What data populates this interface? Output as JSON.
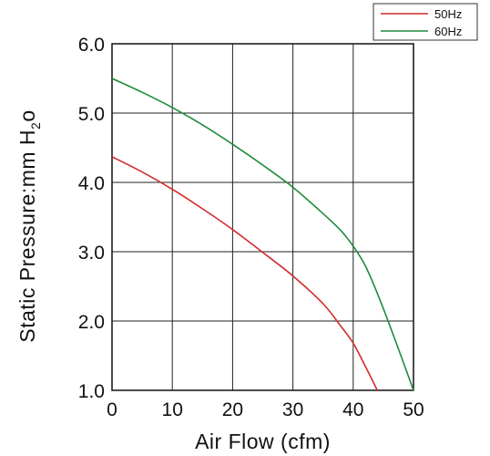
{
  "chart_data": {
    "type": "line",
    "title": "",
    "xlabel": "Air Flow (cfm)",
    "ylabel": "Static Pressure:mm H",
    "ylabel_sub": "2",
    "ylabel_tail": "o",
    "xlim": [
      0,
      50
    ],
    "ylim": [
      1.0,
      6.0
    ],
    "x_ticks": [
      0,
      10,
      20,
      30,
      40,
      50
    ],
    "x_tick_labels": [
      "0",
      "10",
      "20",
      "30",
      "40",
      "50"
    ],
    "y_ticks": [
      1.0,
      2.0,
      3.0,
      4.0,
      5.0,
      6.0
    ],
    "y_tick_labels": [
      "1.0",
      "2.0",
      "3.0",
      "4.0",
      "5.0",
      "6.0"
    ],
    "grid": true,
    "legend": "top-right",
    "series": [
      {
        "name": "50Hz",
        "color": "#d42a2a",
        "x": [
          0,
          5,
          10,
          15,
          20,
          25,
          30,
          35,
          38,
          40,
          42,
          44
        ],
        "y": [
          4.37,
          4.15,
          3.9,
          3.62,
          3.32,
          2.99,
          2.65,
          2.25,
          1.92,
          1.68,
          1.35,
          1.0
        ]
      },
      {
        "name": "60Hz",
        "color": "#1f8a3c",
        "x": [
          0,
          5,
          10,
          15,
          20,
          25,
          30,
          35,
          38,
          40,
          42,
          44,
          46,
          48,
          50
        ],
        "y": [
          5.5,
          5.3,
          5.08,
          4.83,
          4.55,
          4.25,
          3.93,
          3.55,
          3.3,
          3.08,
          2.8,
          2.4,
          1.95,
          1.48,
          1.0
        ]
      }
    ]
  }
}
